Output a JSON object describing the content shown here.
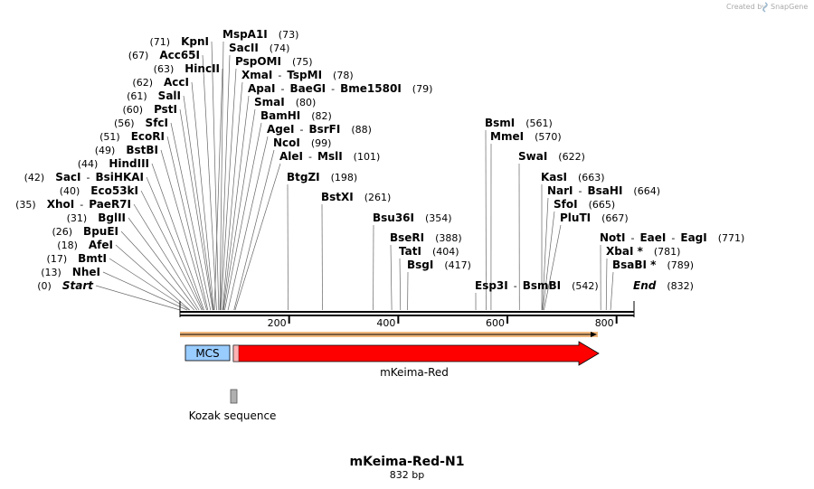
{
  "credit": {
    "created_by": "Created by",
    "brand": "SnapGene"
  },
  "title": "mKeima-Red-N1",
  "length": "832 bp",
  "ticks": [
    "200",
    "400",
    "600",
    "800"
  ],
  "features": {
    "mcs": "MCS",
    "orf": "mKeima-Red",
    "kozak": "Kozak sequence"
  },
  "colors": {
    "orf": "#ff0000",
    "mcs": "#99ccff",
    "kozak": "#b0b0b0",
    "highlight": "#f0b070"
  },
  "sites": [
    {
      "names": [
        "KpnI"
      ],
      "pos": "(71)",
      "bp": 71
    },
    {
      "names": [
        "Acc65I"
      ],
      "pos": "(67)",
      "bp": 67
    },
    {
      "names": [
        "HincII"
      ],
      "pos": "(63)",
      "bp": 63
    },
    {
      "names": [
        "AccI"
      ],
      "pos": "(62)",
      "bp": 62
    },
    {
      "names": [
        "SalI"
      ],
      "pos": "(61)",
      "bp": 61
    },
    {
      "names": [
        "PstI"
      ],
      "pos": "(60)",
      "bp": 60
    },
    {
      "names": [
        "SfcI"
      ],
      "pos": "(56)",
      "bp": 56
    },
    {
      "names": [
        "EcoRI"
      ],
      "pos": "(51)",
      "bp": 51
    },
    {
      "names": [
        "BstBI"
      ],
      "pos": "(49)",
      "bp": 49
    },
    {
      "names": [
        "HindIII"
      ],
      "pos": "(44)",
      "bp": 44
    },
    {
      "names": [
        "SacI",
        "BsiHKAI"
      ],
      "pos": "(42)",
      "bp": 42
    },
    {
      "names": [
        "Eco53kI"
      ],
      "pos": "(40)",
      "bp": 40
    },
    {
      "names": [
        "XhoI",
        "PaeR7I"
      ],
      "pos": "(35)",
      "bp": 35
    },
    {
      "names": [
        "BglII"
      ],
      "pos": "(31)",
      "bp": 31
    },
    {
      "names": [
        "BpuEI"
      ],
      "pos": "(26)",
      "bp": 26
    },
    {
      "names": [
        "AfeI"
      ],
      "pos": "(18)",
      "bp": 18
    },
    {
      "names": [
        "BmtI"
      ],
      "pos": "(17)",
      "bp": 17
    },
    {
      "names": [
        "NheI"
      ],
      "pos": "(13)",
      "bp": 13
    },
    {
      "names": [
        "Start"
      ],
      "pos": "(0)",
      "bp": 0
    },
    {
      "names": [
        "MspA1I"
      ],
      "pos": "(73)",
      "bp": 73
    },
    {
      "names": [
        "SacII"
      ],
      "pos": "(74)",
      "bp": 74
    },
    {
      "names": [
        "PspOMI"
      ],
      "pos": "(75)",
      "bp": 75
    },
    {
      "names": [
        "XmaI",
        "TspMI"
      ],
      "pos": "(78)",
      "bp": 78
    },
    {
      "names": [
        "ApaI",
        "BaeGI",
        "Bme1580I"
      ],
      "pos": "(79)",
      "bp": 79
    },
    {
      "names": [
        "SmaI"
      ],
      "pos": "(80)",
      "bp": 80
    },
    {
      "names": [
        "BamHI"
      ],
      "pos": "(82)",
      "bp": 82
    },
    {
      "names": [
        "AgeI",
        "BsrFI"
      ],
      "pos": "(88)",
      "bp": 88
    },
    {
      "names": [
        "NcoI"
      ],
      "pos": "(99)",
      "bp": 99
    },
    {
      "names": [
        "AleI",
        "MslI"
      ],
      "pos": "(101)",
      "bp": 101
    },
    {
      "names": [
        "BtgZI"
      ],
      "pos": "(198)",
      "bp": 198
    },
    {
      "names": [
        "BstXI"
      ],
      "pos": "(261)",
      "bp": 261
    },
    {
      "names": [
        "Bsu36I"
      ],
      "pos": "(354)",
      "bp": 354
    },
    {
      "names": [
        "BseRI"
      ],
      "pos": "(388)",
      "bp": 388
    },
    {
      "names": [
        "TatI"
      ],
      "pos": "(404)",
      "bp": 404
    },
    {
      "names": [
        "BsgI"
      ],
      "pos": "(417)",
      "bp": 417
    },
    {
      "names": [
        "Esp3I",
        "BsmBI"
      ],
      "pos": "(542)",
      "bp": 542
    },
    {
      "names": [
        "BsmI"
      ],
      "pos": "(561)",
      "bp": 561
    },
    {
      "names": [
        "MmeI"
      ],
      "pos": "(570)",
      "bp": 570
    },
    {
      "names": [
        "SwaI"
      ],
      "pos": "(622)",
      "bp": 622
    },
    {
      "names": [
        "KasI"
      ],
      "pos": "(663)",
      "bp": 663
    },
    {
      "names": [
        "NarI",
        "BsaHI"
      ],
      "pos": "(664)",
      "bp": 664
    },
    {
      "names": [
        "SfoI"
      ],
      "pos": "(665)",
      "bp": 665
    },
    {
      "names": [
        "PluTI"
      ],
      "pos": "(667)",
      "bp": 667
    },
    {
      "names": [
        "NotI",
        "EaeI",
        "EagI"
      ],
      "pos": "(771)",
      "bp": 771
    },
    {
      "names": [
        "XbaI *"
      ],
      "pos": "(781)",
      "bp": 781
    },
    {
      "names": [
        "BsaBI *"
      ],
      "pos": "(789)",
      "bp": 789
    },
    {
      "names": [
        "End"
      ],
      "pos": "(832)",
      "bp": 832
    }
  ]
}
